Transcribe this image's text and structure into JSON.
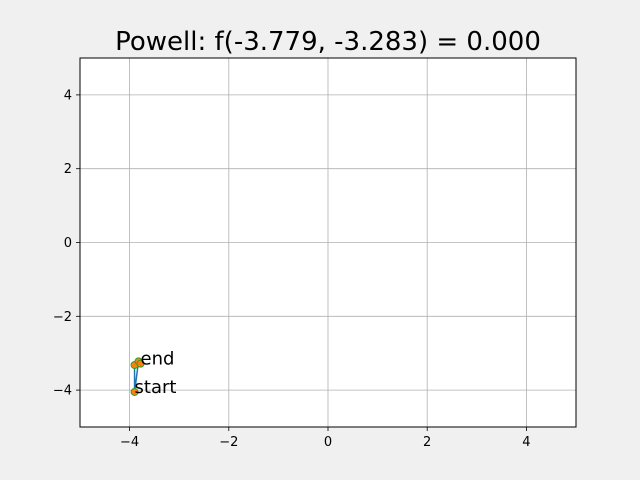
{
  "chart_data": {
    "type": "line",
    "title": "Powell: f(-3.779, -3.283) = 0.000",
    "xlabel": "",
    "ylabel": "",
    "xlim": [
      -5,
      5
    ],
    "ylim": [
      -5,
      5
    ],
    "xticks": [
      -4,
      -2,
      0,
      2,
      4
    ],
    "yticks": [
      -4,
      -2,
      0,
      2,
      4
    ],
    "xtick_labels": [
      "−4",
      "−2",
      "0",
      "2",
      "4"
    ],
    "ytick_labels": [
      "−4",
      "−2",
      "0",
      "2",
      "4"
    ],
    "grid": true,
    "series": [
      {
        "x": [
          -3.9,
          -3.82,
          -3.9,
          -3.9
        ],
        "y": [
          -4.05,
          -3.22,
          -3.32,
          -4.05
        ],
        "color": "#1f77b4"
      }
    ],
    "points": [
      {
        "x": -3.9,
        "y": -4.05
      },
      {
        "x": -3.9,
        "y": -3.32
      },
      {
        "x": -3.82,
        "y": -3.22
      },
      {
        "x": -3.779,
        "y": -3.283
      }
    ],
    "point_color": "#ff7f0e",
    "point_edge_color": "#2ca02c",
    "annotations": [
      {
        "text": "start",
        "x": -3.9,
        "y": -4.05
      },
      {
        "text": "end",
        "x": -3.779,
        "y": -3.283
      }
    ]
  }
}
